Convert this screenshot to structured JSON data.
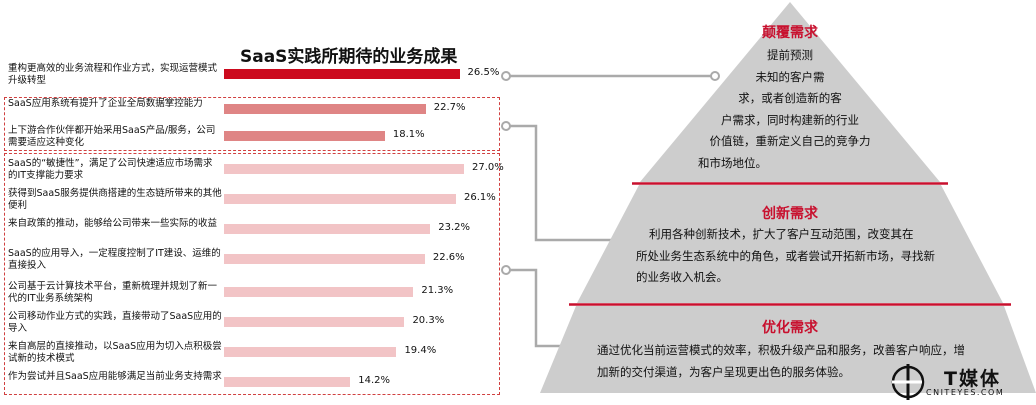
{
  "chart_data": {
    "type": "bar",
    "title": "SaaS实践所期待的业务成果",
    "orientation": "horizontal",
    "categories": [
      "重构更高效的业务流程和作业方式，实现运营模式升级转型",
      "SaaS应用系统有提升了企业全局数据掌控能力",
      "上下游合作伙伴都开始采用SaaS产品/服务，公司需要适应这种变化",
      "SaaS的“敏捷性”，满足了公司快速适应市场需求的IT支撑能力要求",
      "获得到SaaS服务提供商搭建的生态链所带来的其他便利",
      "来自政策的推动，能够给公司带来一些实际的收益",
      "SaaS的应用导入，一定程度控制了IT建设、运维的直接投入",
      "公司基于云计算技术平台，重新梳理并规划了新一代的IT业务系统架构",
      "公司移动作业方式的实践，直接带动了SaaS应用的导入",
      "来自高层的直接推动，以SaaS应用为切入点积极尝试新的技术模式",
      "作为尝试并且SaaS应用能够满足当前业务支持需求"
    ],
    "values": [
      26.5,
      22.7,
      18.1,
      27.0,
      26.1,
      23.2,
      22.6,
      21.3,
      20.3,
      19.4,
      14.2
    ],
    "value_labels": [
      "26.5%",
      "22.7%",
      "18.1%",
      "27.0%",
      "26.1%",
      "23.2%",
      "22.6%",
      "21.3%",
      "20.3%",
      "19.4%",
      "14.2%"
    ],
    "groups": [
      {
        "rows": [
          0
        ],
        "color": "#cc0a1e",
        "pyramid_tier": "颠覆需求"
      },
      {
        "rows": [
          1,
          2
        ],
        "color": "#df8585",
        "pyramid_tier": "创新需求"
      },
      {
        "rows": [
          3,
          4,
          5,
          6,
          7,
          8,
          9,
          10
        ],
        "color": "#f2c4c6",
        "pyramid_tier": "优化需求"
      }
    ],
    "xlim": [
      0,
      30
    ],
    "unit": "%"
  },
  "pyramid": {
    "tiers": [
      {
        "title": "颠覆需求",
        "lines": [
          "提前预测",
          "未知的客户需",
          "求，或者创造新的客",
          "户需求，同时构建新的行业",
          "价值链，重新定义自己的竞争力",
          "和市场地位。"
        ]
      },
      {
        "title": "创新需求",
        "lines": [
          "利用各种创新技术，扩大了客户互动范围，改变其在",
          "所处业务生态系统中的角色，或者尝试开拓新市场，寻找新",
          "的业务收入机会。"
        ]
      },
      {
        "title": "优化需求",
        "lines": [
          "通过优化当前运营模式的效率，积极升级产品和服务，改善客户响应，增",
          "加新的交付渠道，为客户呈现更出色的服务体验。"
        ]
      }
    ],
    "colors": {
      "tier": "#cdcdcd",
      "divider": "#c8102e",
      "connector": "#aaaaaa"
    }
  },
  "logo": {
    "name": "T媒体",
    "sub": "CNITEYES.COM"
  }
}
